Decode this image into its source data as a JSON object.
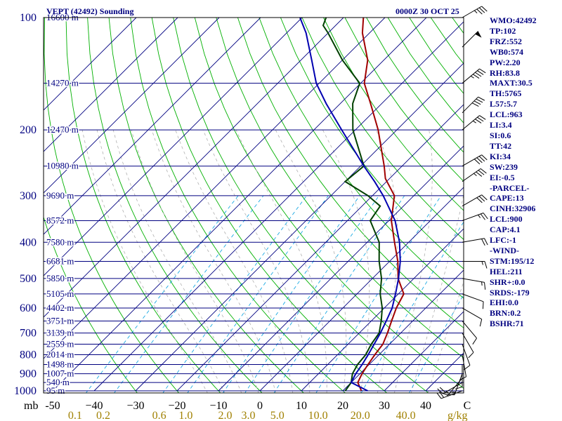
{
  "chart_data": {
    "type": "skew-t",
    "title": "VEPT (42492) Sounding",
    "datetime": "0000Z 30 OCT 25",
    "pressure_unit_label": "mb",
    "temp_unit_label": "C",
    "mixing_ratio_unit_label": "g/kg",
    "pressure_range_mb": [
      100,
      1000
    ],
    "temp_range_c": [
      -50,
      50
    ],
    "pressure_ticks": [
      100,
      200,
      300,
      400,
      500,
      600,
      700,
      800,
      900,
      1000
    ],
    "pressure_ticks_labels": [
      "100",
      "200",
      "300",
      "400",
      "500",
      "600",
      "700",
      "800",
      "900",
      "1000"
    ],
    "temp_ticks": [
      -50,
      -40,
      -30,
      -20,
      -10,
      0,
      10,
      20,
      30,
      40,
      50
    ],
    "temp_tick_labels": [
      "-50",
      "−40",
      "−30",
      "−20",
      "−10",
      "0",
      "10",
      "20",
      "30",
      "40",
      "C"
    ],
    "mixing_ratio_ticks": [
      {
        "label": "0.1",
        "t": -44.6
      },
      {
        "label": "0.2",
        "t": -37.8
      },
      {
        "label": "0.6",
        "t": -24.3
      },
      {
        "label": "1.0",
        "t": -17.9
      },
      {
        "label": "2.0",
        "t": -8.4
      },
      {
        "label": "3.0",
        "t": -2.8
      },
      {
        "label": "5.0",
        "t": 4.2
      },
      {
        "label": "10.0",
        "t": 14.0
      },
      {
        "label": "20.0",
        "t": 24.2
      },
      {
        "label": "40.0",
        "t": 35.2
      }
    ],
    "heights": [
      {
        "p": 100,
        "label": "16600 m"
      },
      {
        "p": 150,
        "label": "14270 m"
      },
      {
        "p": 200,
        "label": "12470 m"
      },
      {
        "p": 250,
        "label": "10980 m"
      },
      {
        "p": 300,
        "label": "9690 m"
      },
      {
        "p": 350,
        "label": "8572 m"
      },
      {
        "p": 400,
        "label": "7580 m"
      },
      {
        "p": 450,
        "label": "6681 m"
      },
      {
        "p": 500,
        "label": "5850 m"
      },
      {
        "p": 550,
        "label": "5105 m"
      },
      {
        "p": 600,
        "label": "4402 m"
      },
      {
        "p": 650,
        "label": "3751 m"
      },
      {
        "p": 700,
        "label": "3139 m"
      },
      {
        "p": 750,
        "label": "2559 m"
      },
      {
        "p": 800,
        "label": "2014 m"
      },
      {
        "p": 850,
        "label": "1498 m"
      },
      {
        "p": 900,
        "label": "1007 m"
      },
      {
        "p": 950,
        "label": "540 m"
      },
      {
        "p": 1000,
        "label": "95 m"
      }
    ],
    "series": [
      {
        "name": "Temperature",
        "color": "#a00000",
        "points": [
          [
            1000,
            24.5
          ],
          [
            950,
            21.6
          ],
          [
            900,
            20.5
          ],
          [
            850,
            19.7
          ],
          [
            800,
            19.0
          ],
          [
            750,
            18.4
          ],
          [
            700,
            16.8
          ],
          [
            650,
            14.9
          ],
          [
            600,
            12.9
          ],
          [
            550,
            11.3
          ],
          [
            500,
            6.2
          ],
          [
            450,
            2.0
          ],
          [
            400,
            -3.4
          ],
          [
            350,
            -9.4
          ],
          [
            300,
            -14.7
          ],
          [
            270,
            -21.0
          ],
          [
            250,
            -24.3
          ],
          [
            200,
            -34.5
          ],
          [
            170,
            -42.7
          ],
          [
            150,
            -49.1
          ],
          [
            130,
            -53.9
          ],
          [
            110,
            -61.7
          ],
          [
            100,
            -65.2
          ]
        ]
      },
      {
        "name": "Dewpoint",
        "color": "#004000",
        "points": [
          [
            1000,
            20.6
          ],
          [
            950,
            20.0
          ],
          [
            900,
            18.2
          ],
          [
            850,
            17.2
          ],
          [
            800,
            16.8
          ],
          [
            750,
            15.6
          ],
          [
            700,
            14.8
          ],
          [
            650,
            12.4
          ],
          [
            600,
            9.5
          ],
          [
            550,
            5.6
          ],
          [
            500,
            2.2
          ],
          [
            450,
            -2.5
          ],
          [
            400,
            -7.1
          ],
          [
            350,
            -14.5
          ],
          [
            320,
            -15.6
          ],
          [
            300,
            -21.1
          ],
          [
            275,
            -30.0
          ],
          [
            250,
            -29.2
          ],
          [
            200,
            -40.6
          ],
          [
            170,
            -47.0
          ],
          [
            150,
            -50.2
          ],
          [
            130,
            -60.0
          ],
          [
            110,
            -70.0
          ],
          [
            105,
            -73.0
          ],
          [
            100,
            -74.2
          ]
        ]
      },
      {
        "name": "Parcel",
        "color": "#0000b0",
        "points": [
          [
            1000,
            26.0
          ],
          [
            950,
            20.0
          ],
          [
            900,
            19.0
          ],
          [
            850,
            18.3
          ],
          [
            800,
            17.4
          ],
          [
            750,
            16.3
          ],
          [
            700,
            15.1
          ],
          [
            650,
            13.6
          ],
          [
            600,
            11.9
          ],
          [
            550,
            9.3
          ],
          [
            500,
            6.3
          ],
          [
            450,
            2.6
          ],
          [
            400,
            -2.2
          ],
          [
            350,
            -8.5
          ],
          [
            300,
            -17.4
          ],
          [
            275,
            -22.9
          ],
          [
            250,
            -29.2
          ],
          [
            200,
            -43.3
          ],
          [
            170,
            -53.4
          ],
          [
            150,
            -60.7
          ],
          [
            130,
            -67.4
          ],
          [
            110,
            -75.3
          ],
          [
            100,
            -80.5
          ]
        ]
      }
    ]
  },
  "indices": {
    "wmo": "WMO:42492",
    "tp": "TP:102",
    "frz": "FRZ:552",
    "wb0": "WB0:574",
    "pw": "PW:2.20",
    "rh": "RH:83.8",
    "maxt": "MAXT:30.5",
    "th": "TH:5765",
    "l57": "L57:5.7",
    "lcl": "LCL:963",
    "li": "LI:3.4",
    "si": "SI:0.6",
    "tt": "TT:42",
    "ki": "KI:34",
    "sw": "SW:239",
    "ei": "EI:-0.5",
    "parcel_header": "-PARCEL-",
    "cape": "CAPE:13",
    "cinh": "CINH:32906",
    "lcl_parcel": "LCL:900",
    "cap": "CAP:4.1",
    "lfc": "LFC:-1",
    "wind_header": "-WIND-",
    "stm": "STM:195/12",
    "hel": "HEL:211",
    "shr": "SHR+:0.0",
    "srds": "SRDS:-179",
    "ehi": "EHI:0.0",
    "brn": "BRN:0.2",
    "bshr": "BSHR:71"
  },
  "wind_barbs": [
    {
      "p": 100,
      "dir": 60,
      "spd": 35
    },
    {
      "p": 120,
      "dir": 45,
      "spd": 50
    },
    {
      "p": 150,
      "dir": 50,
      "spd": 45
    },
    {
      "p": 180,
      "dir": 45,
      "spd": 40
    },
    {
      "p": 200,
      "dir": 50,
      "spd": 35
    },
    {
      "p": 250,
      "dir": 60,
      "spd": 40
    },
    {
      "p": 275,
      "dir": 55,
      "spd": 35
    },
    {
      "p": 320,
      "dir": 60,
      "spd": 30
    },
    {
      "p": 350,
      "dir": 70,
      "spd": 25
    },
    {
      "p": 400,
      "dir": 80,
      "spd": 20
    },
    {
      "p": 450,
      "dir": 90,
      "spd": 15
    },
    {
      "p": 500,
      "dir": 100,
      "spd": 15
    },
    {
      "p": 550,
      "dir": 110,
      "spd": 10
    },
    {
      "p": 600,
      "dir": 120,
      "spd": 10
    },
    {
      "p": 650,
      "dir": 140,
      "spd": 10
    },
    {
      "p": 700,
      "dir": 150,
      "spd": 10
    },
    {
      "p": 750,
      "dir": 160,
      "spd": 10
    },
    {
      "p": 800,
      "dir": 170,
      "spd": 10
    },
    {
      "p": 850,
      "dir": 180,
      "spd": 10
    },
    {
      "p": 900,
      "dir": 200,
      "spd": 15
    },
    {
      "p": 925,
      "dir": 220,
      "spd": 15
    },
    {
      "p": 950,
      "dir": 240,
      "spd": 20
    },
    {
      "p": 1000,
      "dir": 250,
      "spd": 20
    }
  ],
  "colors": {
    "frame": "#000000",
    "isobar": "#000080",
    "isotherm": "#000080",
    "dry_adiabat": "#00b000",
    "moist_adiabat": "#b0b0b0",
    "mixing_ratio": "#00a0e0",
    "axis_text": "#000080",
    "mixing_text": "#a08000",
    "frame_text": "#000000"
  }
}
